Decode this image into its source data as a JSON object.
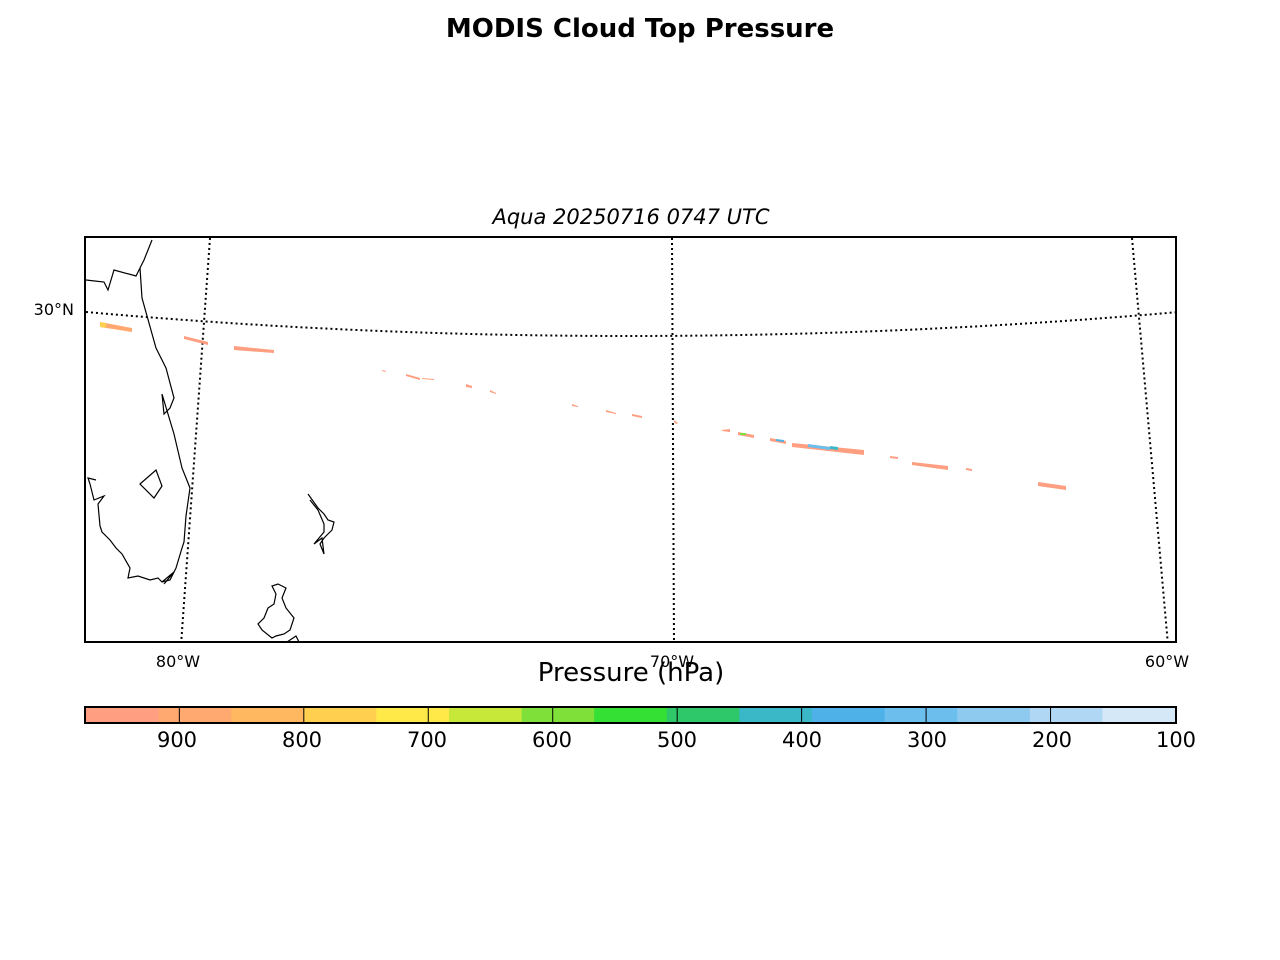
{
  "title": "MODIS Cloud Top Pressure",
  "subtitle": "Aqua 20250716 0747 UTC",
  "map": {
    "lat_labels": [
      "30°N"
    ],
    "lon_labels": [
      "80°W",
      "70°W",
      "60°W"
    ],
    "coastline_color": "#000000",
    "graticule_style": "dotted black"
  },
  "colorbar": {
    "label": "Pressure (hPa)",
    "ticks": [
      "900",
      "800",
      "700",
      "600",
      "500",
      "400",
      "300",
      "200",
      "100"
    ],
    "range_hPa": [
      975,
      100
    ],
    "colors": [
      "#ff9e80",
      "#ffa870",
      "#ffb860",
      "#ffd050",
      "#ffe948",
      "#c7e838",
      "#7ee038",
      "#34e034",
      "#2ec86a",
      "#3ab8c8",
      "#4eb2e8",
      "#6cbeec",
      "#8ecaf0",
      "#b0d8f4",
      "#d4e8f8"
    ]
  },
  "swath_color_dominant": "#ff9e80"
}
